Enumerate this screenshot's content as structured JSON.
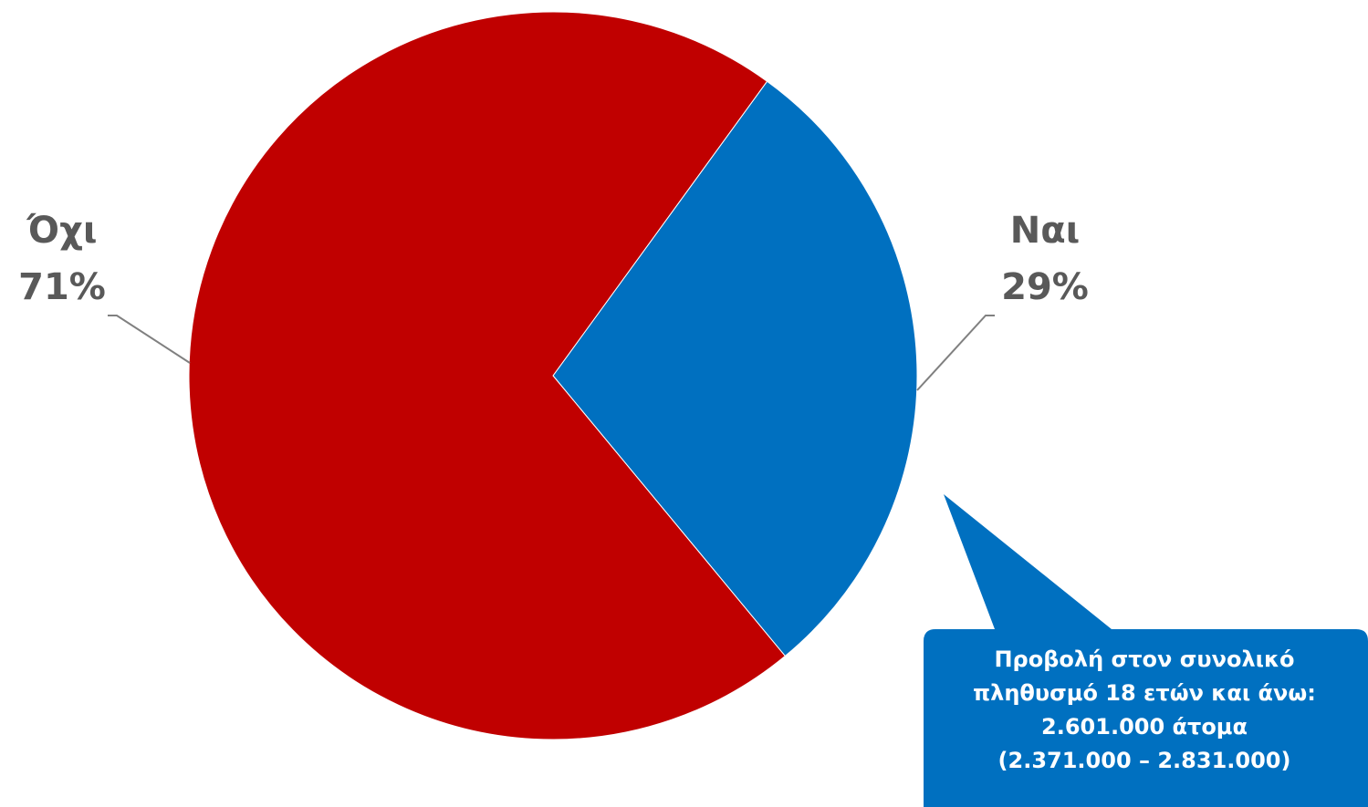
{
  "chart_data": {
    "type": "pie",
    "slices": [
      {
        "category": "Όχι",
        "value": 71,
        "label": "71%",
        "color": "#C00000"
      },
      {
        "category": "Ναι",
        "value": 29,
        "label": "29%",
        "color": "#0070C0"
      }
    ],
    "start_angle_deg": 36,
    "leader_line_color": "#808080"
  },
  "callout": {
    "color": "#0070C0",
    "text_color": "#FFFFFF",
    "lines": [
      "Προβολή στον συνολικό",
      "πληθυσμό 18 ετών και άνω:",
      "2.601.000 άτομα",
      "(2.371.000 – 2.831.000)"
    ]
  }
}
